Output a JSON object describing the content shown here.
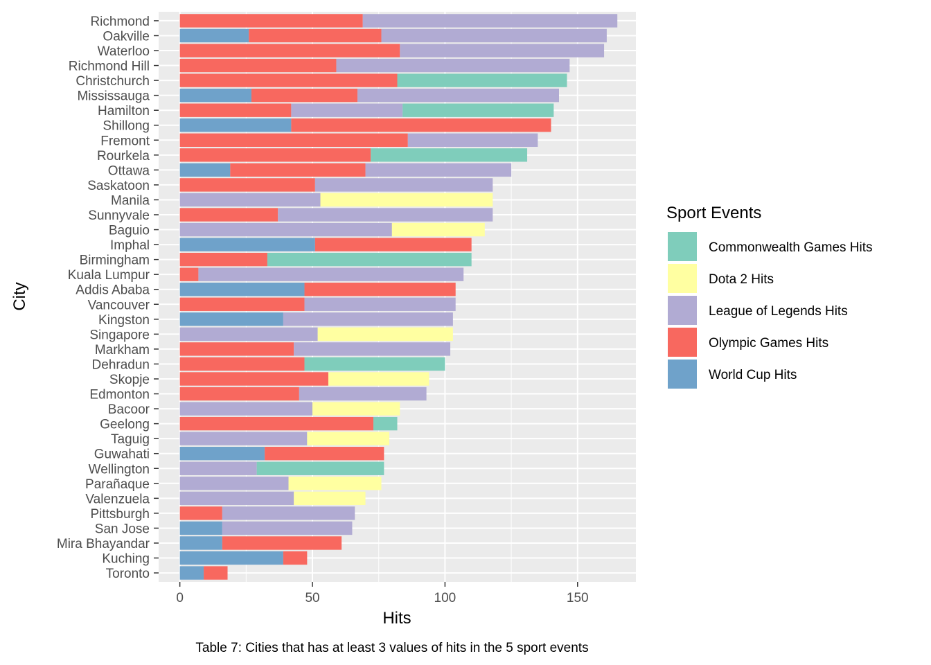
{
  "chart_data": {
    "type": "bar",
    "orientation": "horizontal",
    "stacked": true,
    "xlabel": "Hits",
    "ylabel": "City",
    "xlim": [
      -8,
      172
    ],
    "xticks": [
      0,
      50,
      100,
      150
    ],
    "grid": true,
    "legend_title": "Sport Events",
    "legend_position": "right",
    "caption": "Table 7: Cities that has at least 3 values of hits in the 5 sport events",
    "legend_order": [
      "Commonwealth Games Hits",
      "Dota 2 Hits",
      "League of Legends Hits",
      "Olympic Games Hits",
      "World Cup Hits"
    ],
    "colors": {
      "Commonwealth Games Hits": "#7fcdbb",
      "Dota 2 Hits": "#ffffa1",
      "League of Legends Hits": "#b1abd3",
      "Olympic Games Hits": "#f8685f",
      "World Cup Hits": "#6fa2ca"
    },
    "cities": [
      {
        "city": "Richmond",
        "segments": [
          {
            "event": "Olympic Games Hits",
            "value": 69
          },
          {
            "event": "League of Legends Hits",
            "value": 96
          }
        ]
      },
      {
        "city": "Oakville",
        "segments": [
          {
            "event": "World Cup Hits",
            "value": 26
          },
          {
            "event": "Olympic Games Hits",
            "value": 50
          },
          {
            "event": "League of Legends Hits",
            "value": 85
          }
        ]
      },
      {
        "city": "Waterloo",
        "segments": [
          {
            "event": "Olympic Games Hits",
            "value": 83
          },
          {
            "event": "League of Legends Hits",
            "value": 77
          }
        ]
      },
      {
        "city": "Richmond Hill",
        "segments": [
          {
            "event": "Olympic Games Hits",
            "value": 59
          },
          {
            "event": "League of Legends Hits",
            "value": 88
          }
        ]
      },
      {
        "city": "Christchurch",
        "segments": [
          {
            "event": "Olympic Games Hits",
            "value": 82
          },
          {
            "event": "Commonwealth Games Hits",
            "value": 64
          }
        ]
      },
      {
        "city": "Mississauga",
        "segments": [
          {
            "event": "World Cup Hits",
            "value": 27
          },
          {
            "event": "Olympic Games Hits",
            "value": 40
          },
          {
            "event": "League of Legends Hits",
            "value": 76
          }
        ]
      },
      {
        "city": "Hamilton",
        "segments": [
          {
            "event": "Olympic Games Hits",
            "value": 42
          },
          {
            "event": "League of Legends Hits",
            "value": 42
          },
          {
            "event": "Commonwealth Games Hits",
            "value": 57
          }
        ]
      },
      {
        "city": "Shillong",
        "segments": [
          {
            "event": "World Cup Hits",
            "value": 42
          },
          {
            "event": "Olympic Games Hits",
            "value": 98
          }
        ]
      },
      {
        "city": "Fremont",
        "segments": [
          {
            "event": "Olympic Games Hits",
            "value": 86
          },
          {
            "event": "League of Legends Hits",
            "value": 49
          }
        ]
      },
      {
        "city": "Rourkela",
        "segments": [
          {
            "event": "Olympic Games Hits",
            "value": 72
          },
          {
            "event": "Commonwealth Games Hits",
            "value": 59
          }
        ]
      },
      {
        "city": "Ottawa",
        "segments": [
          {
            "event": "World Cup Hits",
            "value": 19
          },
          {
            "event": "Olympic Games Hits",
            "value": 51
          },
          {
            "event": "League of Legends Hits",
            "value": 55
          }
        ]
      },
      {
        "city": "Saskatoon",
        "segments": [
          {
            "event": "Olympic Games Hits",
            "value": 51
          },
          {
            "event": "League of Legends Hits",
            "value": 67
          }
        ]
      },
      {
        "city": "Manila",
        "segments": [
          {
            "event": "League of Legends Hits",
            "value": 53
          },
          {
            "event": "Dota 2 Hits",
            "value": 65
          }
        ]
      },
      {
        "city": "Sunnyvale",
        "segments": [
          {
            "event": "Olympic Games Hits",
            "value": 37
          },
          {
            "event": "League of Legends Hits",
            "value": 81
          }
        ]
      },
      {
        "city": "Baguio",
        "segments": [
          {
            "event": "League of Legends Hits",
            "value": 80
          },
          {
            "event": "Dota 2 Hits",
            "value": 35
          }
        ]
      },
      {
        "city": "Imphal",
        "segments": [
          {
            "event": "World Cup Hits",
            "value": 51
          },
          {
            "event": "Olympic Games Hits",
            "value": 59
          }
        ]
      },
      {
        "city": "Birmingham",
        "segments": [
          {
            "event": "Olympic Games Hits",
            "value": 33
          },
          {
            "event": "Commonwealth Games Hits",
            "value": 77
          }
        ]
      },
      {
        "city": "Kuala Lumpur",
        "segments": [
          {
            "event": "Olympic Games Hits",
            "value": 7
          },
          {
            "event": "League of Legends Hits",
            "value": 100
          }
        ]
      },
      {
        "city": "Addis Ababa",
        "segments": [
          {
            "event": "World Cup Hits",
            "value": 47
          },
          {
            "event": "Olympic Games Hits",
            "value": 57
          }
        ]
      },
      {
        "city": "Vancouver",
        "segments": [
          {
            "event": "Olympic Games Hits",
            "value": 47
          },
          {
            "event": "League of Legends Hits",
            "value": 57
          }
        ]
      },
      {
        "city": "Kingston",
        "segments": [
          {
            "event": "World Cup Hits",
            "value": 39
          },
          {
            "event": "League of Legends Hits",
            "value": 64
          }
        ]
      },
      {
        "city": "Singapore",
        "segments": [
          {
            "event": "League of Legends Hits",
            "value": 52
          },
          {
            "event": "Dota 2 Hits",
            "value": 51
          }
        ]
      },
      {
        "city": "Markham",
        "segments": [
          {
            "event": "Olympic Games Hits",
            "value": 43
          },
          {
            "event": "League of Legends Hits",
            "value": 59
          }
        ]
      },
      {
        "city": "Dehradun",
        "segments": [
          {
            "event": "Olympic Games Hits",
            "value": 47
          },
          {
            "event": "Commonwealth Games Hits",
            "value": 53
          }
        ]
      },
      {
        "city": "Skopje",
        "segments": [
          {
            "event": "Olympic Games Hits",
            "value": 56
          },
          {
            "event": "Dota 2 Hits",
            "value": 38
          }
        ]
      },
      {
        "city": "Edmonton",
        "segments": [
          {
            "event": "Olympic Games Hits",
            "value": 45
          },
          {
            "event": "League of Legends Hits",
            "value": 48
          }
        ]
      },
      {
        "city": "Bacoor",
        "segments": [
          {
            "event": "League of Legends Hits",
            "value": 50
          },
          {
            "event": "Dota 2 Hits",
            "value": 33
          }
        ]
      },
      {
        "city": "Geelong",
        "segments": [
          {
            "event": "Olympic Games Hits",
            "value": 73
          },
          {
            "event": "Commonwealth Games Hits",
            "value": 9
          }
        ]
      },
      {
        "city": "Taguig",
        "segments": [
          {
            "event": "League of Legends Hits",
            "value": 48
          },
          {
            "event": "Dota 2 Hits",
            "value": 31
          }
        ]
      },
      {
        "city": "Guwahati",
        "segments": [
          {
            "event": "World Cup Hits",
            "value": 32
          },
          {
            "event": "Olympic Games Hits",
            "value": 45
          }
        ]
      },
      {
        "city": "Wellington",
        "segments": [
          {
            "event": "League of Legends Hits",
            "value": 29
          },
          {
            "event": "Commonwealth Games Hits",
            "value": 48
          }
        ]
      },
      {
        "city": "Parañaque",
        "segments": [
          {
            "event": "League of Legends Hits",
            "value": 41
          },
          {
            "event": "Dota 2 Hits",
            "value": 35
          }
        ]
      },
      {
        "city": "Valenzuela",
        "segments": [
          {
            "event": "League of Legends Hits",
            "value": 43
          },
          {
            "event": "Dota 2 Hits",
            "value": 27
          }
        ]
      },
      {
        "city": "Pittsburgh",
        "segments": [
          {
            "event": "Olympic Games Hits",
            "value": 16
          },
          {
            "event": "League of Legends Hits",
            "value": 50
          }
        ]
      },
      {
        "city": "San Jose",
        "segments": [
          {
            "event": "World Cup Hits",
            "value": 16
          },
          {
            "event": "League of Legends Hits",
            "value": 49
          }
        ]
      },
      {
        "city": "Mira Bhayandar",
        "segments": [
          {
            "event": "World Cup Hits",
            "value": 16
          },
          {
            "event": "Olympic Games Hits",
            "value": 45
          }
        ]
      },
      {
        "city": "Kuching",
        "segments": [
          {
            "event": "World Cup Hits",
            "value": 39
          },
          {
            "event": "Olympic Games Hits",
            "value": 9
          }
        ]
      },
      {
        "city": "Toronto",
        "segments": [
          {
            "event": "World Cup Hits",
            "value": 9
          },
          {
            "event": "Olympic Games Hits",
            "value": 9
          }
        ]
      }
    ]
  }
}
